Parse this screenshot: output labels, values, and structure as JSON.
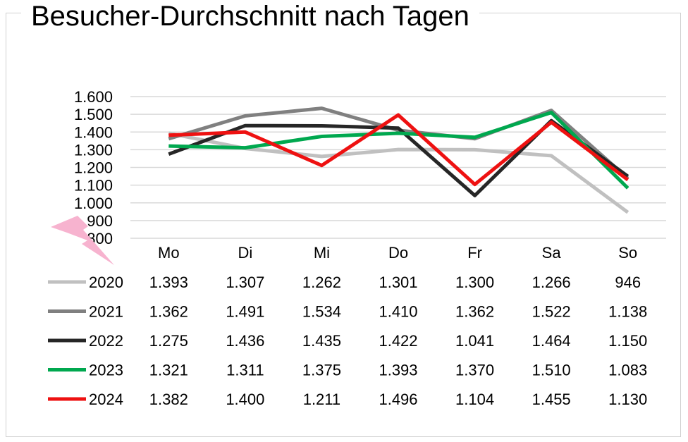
{
  "chart_data": {
    "type": "line",
    "title": "Besucher-Durchschnitt nach Tagen",
    "categories": [
      "Mo",
      "Di",
      "Mi",
      "Do",
      "Fr",
      "Sa",
      "So"
    ],
    "ylim": [
      800,
      1600
    ],
    "yticks": [
      800,
      900,
      1000,
      1100,
      1200,
      1300,
      1400,
      1500,
      1600
    ],
    "ytick_labels": [
      "800",
      "900",
      "1.000",
      "1.100",
      "1.200",
      "1.300",
      "1.400",
      "1.500",
      "1.600"
    ],
    "grid": true,
    "legend": "data-table-below",
    "series": [
      {
        "name": "2020",
        "color": "#c0c0c0",
        "values": [
          1393,
          1307,
          1262,
          1301,
          1300,
          1266,
          946
        ],
        "labels": [
          "1.393",
          "1.307",
          "1.262",
          "1.301",
          "1.300",
          "1.266",
          "946"
        ]
      },
      {
        "name": "2021",
        "color": "#808080",
        "values": [
          1362,
          1491,
          1534,
          1410,
          1362,
          1522,
          1138
        ],
        "labels": [
          "1.362",
          "1.491",
          "1.534",
          "1.410",
          "1.362",
          "1.522",
          "1.138"
        ]
      },
      {
        "name": "2022",
        "color": "#262626",
        "values": [
          1275,
          1436,
          1435,
          1422,
          1041,
          1464,
          1150
        ],
        "labels": [
          "1.275",
          "1.436",
          "1.435",
          "1.422",
          "1.041",
          "1.464",
          "1.150"
        ]
      },
      {
        "name": "2023",
        "color": "#00a84f",
        "values": [
          1321,
          1311,
          1375,
          1393,
          1370,
          1510,
          1083
        ],
        "labels": [
          "1.321",
          "1.311",
          "1.375",
          "1.393",
          "1.370",
          "1.510",
          "1.083"
        ]
      },
      {
        "name": "2024",
        "color": "#ee1111",
        "values": [
          1382,
          1400,
          1211,
          1496,
          1104,
          1455,
          1130
        ],
        "labels": [
          "1.382",
          "1.400",
          "1.211",
          "1.496",
          "1.104",
          "1.455",
          "1.130"
        ]
      }
    ]
  },
  "decoration": {
    "icon": "lightning-bolt-icon",
    "color": "#f7b3cf"
  }
}
